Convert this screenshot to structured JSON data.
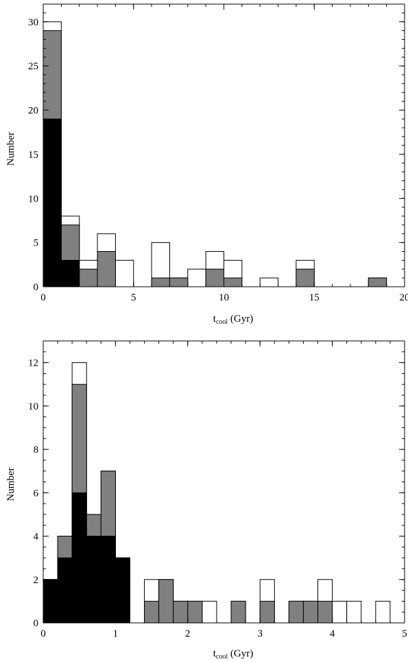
{
  "chart_data": [
    {
      "type": "bar",
      "stacked_overlay": true,
      "xlabel_main": "t",
      "xlabel_sub": "cool",
      "xlabel_unit": " (Gyr)",
      "ylabel": "Number",
      "xlim": [
        0,
        20
      ],
      "ylim": [
        0,
        32
      ],
      "x_ticks": [
        0,
        5,
        10,
        15,
        20
      ],
      "y_ticks": [
        0,
        5,
        10,
        15,
        20,
        25,
        30
      ],
      "bin_width": 1,
      "bin_starts": [
        0,
        1,
        2,
        3,
        4,
        5,
        6,
        7,
        8,
        9,
        10,
        11,
        12,
        13,
        14,
        15,
        16,
        17,
        18,
        19
      ],
      "series": [
        {
          "fill": "#ffffff",
          "values": [
            30,
            8,
            3,
            6,
            3,
            0,
            5,
            1,
            2,
            4,
            3,
            0,
            1,
            0,
            3,
            0,
            0,
            0,
            1,
            0
          ]
        },
        {
          "fill": "#808080",
          "values": [
            29,
            7,
            2,
            4,
            0,
            0,
            1,
            1,
            0,
            2,
            1,
            0,
            0,
            0,
            2,
            0,
            0,
            0,
            1,
            0
          ]
        },
        {
          "fill": "#000000",
          "values": [
            19,
            3,
            0,
            0,
            0,
            0,
            0,
            0,
            0,
            0,
            0,
            0,
            0,
            0,
            0,
            0,
            0,
            0,
            0,
            0
          ]
        }
      ]
    },
    {
      "type": "bar",
      "stacked_overlay": true,
      "xlabel_main": "t",
      "xlabel_sub": "cool",
      "xlabel_unit": " (Gyr)",
      "ylabel": "Number",
      "xlim": [
        0,
        5
      ],
      "ylim": [
        0,
        13
      ],
      "x_ticks": [
        0,
        1,
        2,
        3,
        4,
        5
      ],
      "y_ticks": [
        0,
        2,
        4,
        6,
        8,
        10,
        12
      ],
      "bin_width": 0.2,
      "bin_starts": [
        0,
        0.2,
        0.4,
        0.6,
        0.8,
        1.0,
        1.2,
        1.4,
        1.6,
        1.8,
        2.0,
        2.2,
        2.4,
        2.6,
        2.8,
        3.0,
        3.2,
        3.4,
        3.6,
        3.8,
        4.0,
        4.2,
        4.4,
        4.6,
        4.8
      ],
      "series": [
        {
          "fill": "#ffffff",
          "values": [
            2,
            4,
            12,
            5,
            7,
            3,
            0,
            2,
            2,
            1,
            1,
            1,
            0,
            1,
            0,
            2,
            0,
            1,
            1,
            2,
            1,
            1,
            0,
            1,
            0
          ]
        },
        {
          "fill": "#808080",
          "values": [
            2,
            4,
            11,
            5,
            7,
            3,
            0,
            1,
            2,
            1,
            1,
            0,
            0,
            1,
            0,
            1,
            0,
            1,
            1,
            1,
            0,
            0,
            0,
            0,
            0
          ]
        },
        {
          "fill": "#000000",
          "values": [
            2,
            3,
            6,
            4,
            4,
            3,
            0,
            0,
            0,
            0,
            0,
            0,
            0,
            0,
            0,
            0,
            0,
            0,
            0,
            0,
            0,
            0,
            0,
            0,
            0
          ]
        }
      ]
    }
  ]
}
